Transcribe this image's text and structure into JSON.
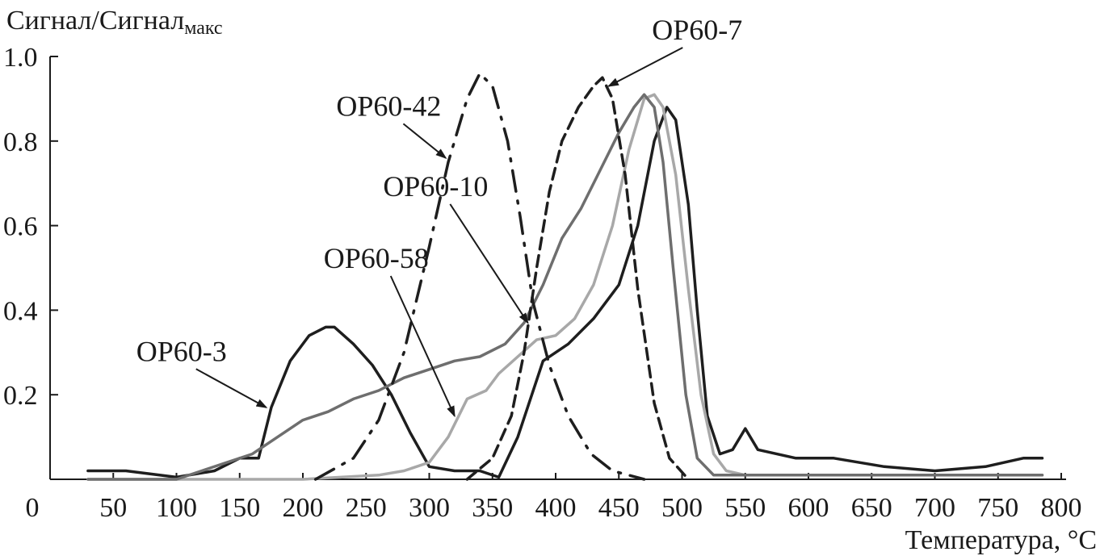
{
  "chart_data": {
    "type": "line",
    "ylabel": "Сигнал/Сигнал",
    "ylabel_subscript": "макс",
    "xlabel": "Температура, °C",
    "xlim": [
      0,
      800
    ],
    "ylim": [
      0,
      1.0
    ],
    "x_ticks": [
      0,
      50,
      100,
      150,
      200,
      250,
      300,
      350,
      400,
      450,
      500,
      550,
      600,
      650,
      700,
      750,
      800
    ],
    "x_tick_labels": [
      "0",
      "50",
      "100",
      "150",
      "200",
      "250",
      "300",
      "350",
      "400",
      "450",
      "500",
      "550",
      "600",
      "650",
      "700",
      "750",
      "800"
    ],
    "y_ticks": [
      0.2,
      0.4,
      0.6,
      0.8,
      1.0
    ],
    "y_tick_labels": [
      "0.2",
      "0.4",
      "0.6",
      "0.8",
      "1.0"
    ],
    "grid": false,
    "series": [
      {
        "name": "OP60-3",
        "color": "#1e1e1e",
        "style": "solid",
        "points": [
          [
            30,
            0.02
          ],
          [
            60,
            0.02
          ],
          [
            100,
            0.005
          ],
          [
            130,
            0.02
          ],
          [
            150,
            0.05
          ],
          [
            165,
            0.05
          ],
          [
            175,
            0.17
          ],
          [
            190,
            0.28
          ],
          [
            205,
            0.34
          ],
          [
            218,
            0.36
          ],
          [
            225,
            0.36
          ],
          [
            240,
            0.32
          ],
          [
            255,
            0.27
          ],
          [
            270,
            0.2
          ],
          [
            285,
            0.11
          ],
          [
            300,
            0.03
          ],
          [
            320,
            0.02
          ],
          [
            340,
            0.02
          ],
          [
            355,
            0.005
          ],
          [
            370,
            0.1
          ],
          [
            390,
            0.28
          ],
          [
            410,
            0.32
          ],
          [
            430,
            0.38
          ],
          [
            450,
            0.46
          ],
          [
            465,
            0.6
          ],
          [
            478,
            0.8
          ],
          [
            488,
            0.88
          ],
          [
            495,
            0.85
          ],
          [
            505,
            0.65
          ],
          [
            512,
            0.4
          ],
          [
            520,
            0.15
          ],
          [
            530,
            0.06
          ],
          [
            540,
            0.07
          ],
          [
            550,
            0.12
          ],
          [
            560,
            0.07
          ],
          [
            590,
            0.05
          ],
          [
            620,
            0.05
          ],
          [
            660,
            0.03
          ],
          [
            700,
            0.02
          ],
          [
            740,
            0.03
          ],
          [
            770,
            0.05
          ],
          [
            785,
            0.05
          ]
        ]
      },
      {
        "name": "OP60-58",
        "color": "#a8a8a8",
        "style": "solid",
        "points": [
          [
            30,
            0.0
          ],
          [
            100,
            0.0
          ],
          [
            200,
            0.0
          ],
          [
            260,
            0.01
          ],
          [
            280,
            0.02
          ],
          [
            300,
            0.04
          ],
          [
            315,
            0.1
          ],
          [
            330,
            0.19
          ],
          [
            345,
            0.21
          ],
          [
            355,
            0.25
          ],
          [
            370,
            0.29
          ],
          [
            385,
            0.33
          ],
          [
            400,
            0.34
          ],
          [
            415,
            0.38
          ],
          [
            430,
            0.46
          ],
          [
            445,
            0.6
          ],
          [
            458,
            0.78
          ],
          [
            470,
            0.9
          ],
          [
            478,
            0.91
          ],
          [
            485,
            0.88
          ],
          [
            495,
            0.72
          ],
          [
            505,
            0.45
          ],
          [
            515,
            0.2
          ],
          [
            525,
            0.06
          ],
          [
            535,
            0.02
          ],
          [
            550,
            0.01
          ],
          [
            700,
            0.01
          ],
          [
            785,
            0.01
          ]
        ]
      },
      {
        "name": "OP60-10",
        "color": "#6e6e6e",
        "style": "solid",
        "points": [
          [
            30,
            0.0
          ],
          [
            100,
            0.0
          ],
          [
            120,
            0.02
          ],
          [
            140,
            0.04
          ],
          [
            160,
            0.06
          ],
          [
            180,
            0.1
          ],
          [
            200,
            0.14
          ],
          [
            220,
            0.16
          ],
          [
            240,
            0.19
          ],
          [
            260,
            0.21
          ],
          [
            280,
            0.24
          ],
          [
            300,
            0.26
          ],
          [
            320,
            0.28
          ],
          [
            340,
            0.29
          ],
          [
            360,
            0.32
          ],
          [
            375,
            0.37
          ],
          [
            390,
            0.46
          ],
          [
            405,
            0.57
          ],
          [
            420,
            0.64
          ],
          [
            435,
            0.73
          ],
          [
            450,
            0.82
          ],
          [
            462,
            0.88
          ],
          [
            470,
            0.91
          ],
          [
            478,
            0.88
          ],
          [
            485,
            0.75
          ],
          [
            493,
            0.5
          ],
          [
            503,
            0.2
          ],
          [
            512,
            0.05
          ],
          [
            525,
            0.01
          ],
          [
            785,
            0.01
          ]
        ]
      },
      {
        "name": "OP60-7",
        "color": "#1e1e1e",
        "style": "dashed",
        "points": [
          [
            330,
            0.0
          ],
          [
            350,
            0.05
          ],
          [
            365,
            0.15
          ],
          [
            375,
            0.3
          ],
          [
            385,
            0.5
          ],
          [
            395,
            0.68
          ],
          [
            405,
            0.8
          ],
          [
            418,
            0.88
          ],
          [
            430,
            0.93
          ],
          [
            437,
            0.95
          ],
          [
            445,
            0.9
          ],
          [
            455,
            0.72
          ],
          [
            465,
            0.45
          ],
          [
            478,
            0.18
          ],
          [
            490,
            0.05
          ],
          [
            505,
            0.0
          ]
        ]
      },
      {
        "name": "OP60-42",
        "color": "#1e1e1e",
        "style": "dashdot",
        "points": [
          [
            210,
            0.0
          ],
          [
            240,
            0.05
          ],
          [
            260,
            0.14
          ],
          [
            280,
            0.3
          ],
          [
            300,
            0.55
          ],
          [
            315,
            0.75
          ],
          [
            330,
            0.9
          ],
          [
            340,
            0.96
          ],
          [
            350,
            0.93
          ],
          [
            362,
            0.8
          ],
          [
            372,
            0.62
          ],
          [
            382,
            0.42
          ],
          [
            395,
            0.27
          ],
          [
            410,
            0.15
          ],
          [
            428,
            0.06
          ],
          [
            445,
            0.02
          ],
          [
            470,
            0.0
          ]
        ]
      }
    ],
    "annotations": [
      {
        "label": "OP60-3",
        "series": "OP60-3",
        "label_at": [
          104,
          0.28
        ],
        "arrow_to": [
          171,
          0.17
        ]
      },
      {
        "label": "OP60-58",
        "series": "OP60-58",
        "label_at": [
          258,
          0.5
        ],
        "arrow_to": [
          320,
          0.15
        ]
      },
      {
        "label": "OP60-10",
        "series": "OP60-10",
        "label_at": [
          305,
          0.67
        ],
        "arrow_to": [
          378,
          0.37
        ]
      },
      {
        "label": "OP60-42",
        "series": "OP60-42",
        "label_at": [
          268,
          0.86
        ],
        "arrow_to": [
          313,
          0.76
        ]
      },
      {
        "label": "OP60-7",
        "series": "OP60-7",
        "label_at": [
          512,
          1.04
        ],
        "arrow_to": [
          442,
          0.93
        ]
      }
    ]
  }
}
